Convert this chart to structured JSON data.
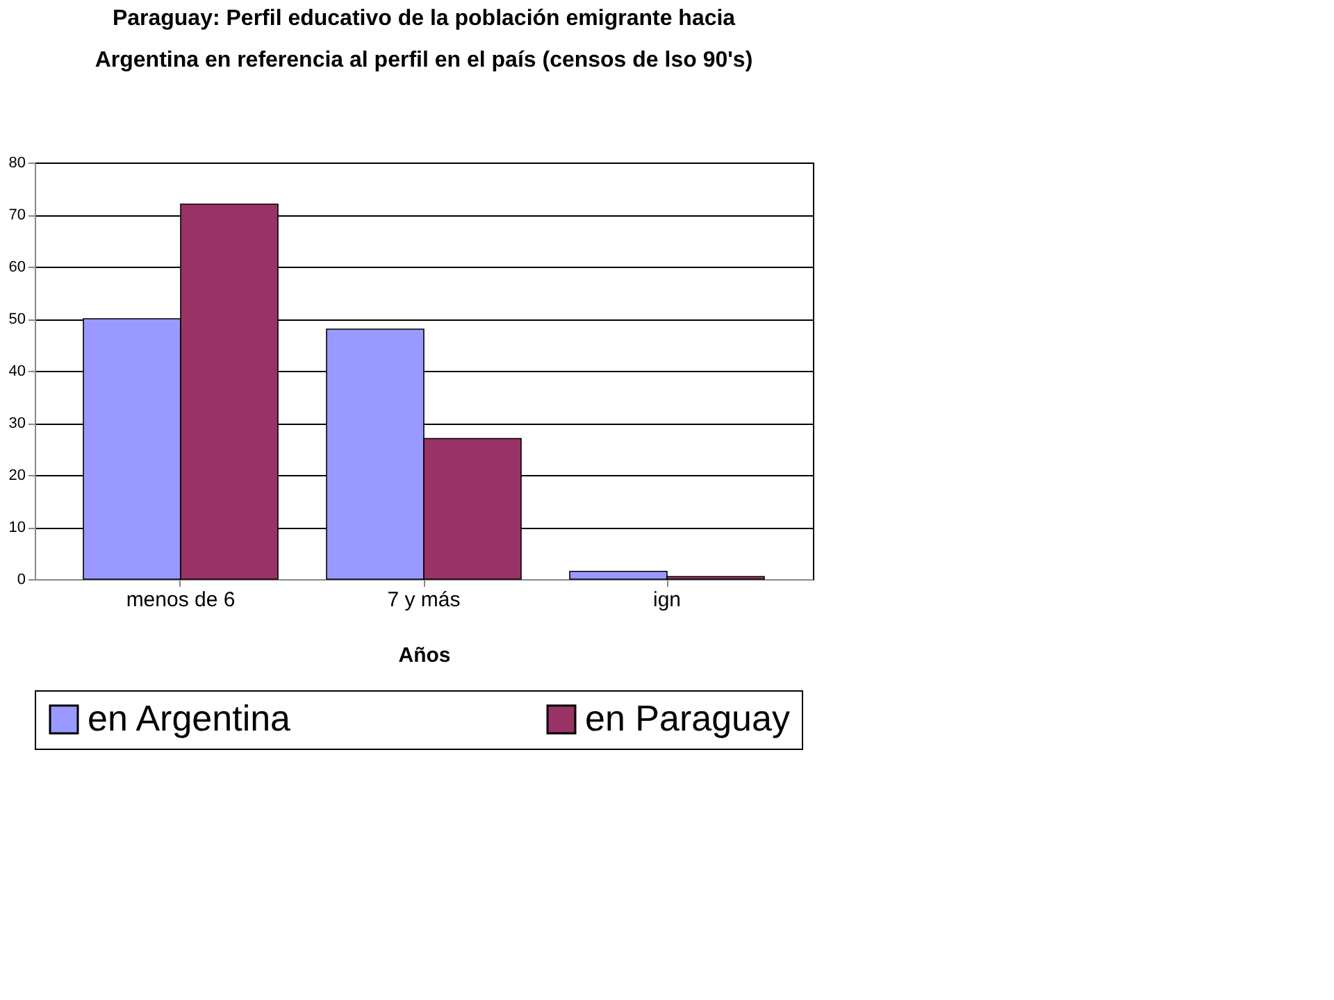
{
  "chart_data": {
    "type": "bar",
    "title": [
      "Paraguay: Perfil educativo de la población emigrante hacia",
      "Argentina en referencia al perfil en el país (censos de lso 90's)"
    ],
    "xlabel": "Años",
    "categories": [
      "menos de 6",
      "7 y más",
      "ign"
    ],
    "series": [
      {
        "name": "en Argentina",
        "color": "#9999ff",
        "values": [
          50,
          48,
          1.5
        ]
      },
      {
        "name": "en Paraguay",
        "color": "#993366",
        "values": [
          72,
          27,
          0.5
        ]
      }
    ],
    "ylim": [
      0,
      80
    ],
    "yticks": [
      0,
      10,
      20,
      30,
      40,
      50,
      60,
      70,
      80
    ],
    "grid": "y",
    "legend": "bottom"
  }
}
